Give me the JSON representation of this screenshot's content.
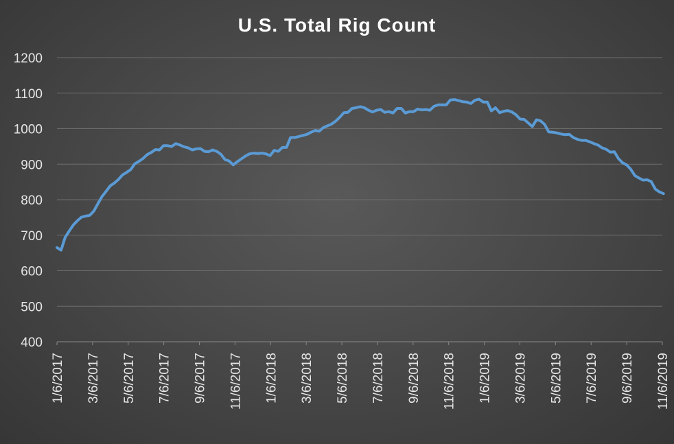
{
  "chart_data": {
    "type": "line",
    "title": "U.S. Total Rig Count",
    "xlabel": "",
    "ylabel": "",
    "ylim": [
      400,
      1200
    ],
    "yticks": [
      400,
      500,
      600,
      700,
      800,
      900,
      1000,
      1100,
      1200
    ],
    "xtick_labels": [
      "1/6/2017",
      "3/6/2017",
      "5/6/2017",
      "7/6/2017",
      "9/6/2017",
      "11/6/2017",
      "1/6/2018",
      "3/6/2018",
      "5/6/2018",
      "7/6/2018",
      "9/6/2018",
      "11/6/2018",
      "1/6/2019",
      "3/6/2019",
      "5/6/2019",
      "7/6/2019",
      "9/6/2019",
      "11/6/2019"
    ],
    "xlim": [
      "2017-01-06",
      "2019-11-06"
    ],
    "grid": true,
    "legend": "none",
    "series": [
      {
        "color": "#5b9bd5",
        "points": [
          [
            "2017-01-06",
            665
          ],
          [
            "2017-01-13",
            658
          ],
          [
            "2017-01-20",
            694
          ],
          [
            "2017-01-27",
            712
          ],
          [
            "2017-02-03",
            729
          ],
          [
            "2017-02-10",
            741
          ],
          [
            "2017-02-17",
            751
          ],
          [
            "2017-02-24",
            754
          ],
          [
            "2017-03-03",
            756
          ],
          [
            "2017-03-10",
            768
          ],
          [
            "2017-03-17",
            789
          ],
          [
            "2017-03-24",
            809
          ],
          [
            "2017-03-31",
            824
          ],
          [
            "2017-04-07",
            839
          ],
          [
            "2017-04-14",
            847
          ],
          [
            "2017-04-21",
            857
          ],
          [
            "2017-04-28",
            870
          ],
          [
            "2017-05-05",
            877
          ],
          [
            "2017-05-12",
            885
          ],
          [
            "2017-05-19",
            901
          ],
          [
            "2017-05-26",
            908
          ],
          [
            "2017-06-02",
            916
          ],
          [
            "2017-06-09",
            927
          ],
          [
            "2017-06-16",
            933
          ],
          [
            "2017-06-23",
            941
          ],
          [
            "2017-06-30",
            940
          ],
          [
            "2017-07-07",
            952
          ],
          [
            "2017-07-14",
            952
          ],
          [
            "2017-07-21",
            950
          ],
          [
            "2017-07-28",
            958
          ],
          [
            "2017-08-04",
            954
          ],
          [
            "2017-08-11",
            949
          ],
          [
            "2017-08-18",
            946
          ],
          [
            "2017-08-25",
            940
          ],
          [
            "2017-09-01",
            943
          ],
          [
            "2017-09-08",
            944
          ],
          [
            "2017-09-15",
            936
          ],
          [
            "2017-09-22",
            935
          ],
          [
            "2017-09-29",
            940
          ],
          [
            "2017-10-06",
            936
          ],
          [
            "2017-10-13",
            928
          ],
          [
            "2017-10-20",
            913
          ],
          [
            "2017-10-27",
            909
          ],
          [
            "2017-11-03",
            898
          ],
          [
            "2017-11-10",
            907
          ],
          [
            "2017-11-17",
            915
          ],
          [
            "2017-11-24",
            923
          ],
          [
            "2017-12-01",
            929
          ],
          [
            "2017-12-08",
            931
          ],
          [
            "2017-12-15",
            930
          ],
          [
            "2017-12-22",
            931
          ],
          [
            "2017-12-29",
            929
          ],
          [
            "2018-01-05",
            924
          ],
          [
            "2018-01-12",
            939
          ],
          [
            "2018-01-19",
            936
          ],
          [
            "2018-01-26",
            947
          ],
          [
            "2018-02-02",
            947
          ],
          [
            "2018-02-09",
            975
          ],
          [
            "2018-02-16",
            975
          ],
          [
            "2018-02-23",
            978
          ],
          [
            "2018-03-02",
            981
          ],
          [
            "2018-03-09",
            984
          ],
          [
            "2018-03-16",
            990
          ],
          [
            "2018-03-23",
            995
          ],
          [
            "2018-03-30",
            993
          ],
          [
            "2018-04-06",
            1003
          ],
          [
            "2018-04-13",
            1008
          ],
          [
            "2018-04-20",
            1013
          ],
          [
            "2018-04-27",
            1021
          ],
          [
            "2018-05-04",
            1032
          ],
          [
            "2018-05-11",
            1045
          ],
          [
            "2018-05-18",
            1046
          ],
          [
            "2018-05-25",
            1057
          ],
          [
            "2018-06-01",
            1059
          ],
          [
            "2018-06-08",
            1062
          ],
          [
            "2018-06-15",
            1059
          ],
          [
            "2018-06-22",
            1052
          ],
          [
            "2018-06-29",
            1047
          ],
          [
            "2018-07-06",
            1052
          ],
          [
            "2018-07-13",
            1054
          ],
          [
            "2018-07-20",
            1046
          ],
          [
            "2018-07-27",
            1048
          ],
          [
            "2018-08-03",
            1044
          ],
          [
            "2018-08-10",
            1057
          ],
          [
            "2018-08-17",
            1057
          ],
          [
            "2018-08-24",
            1044
          ],
          [
            "2018-08-31",
            1048
          ],
          [
            "2018-09-07",
            1048
          ],
          [
            "2018-09-14",
            1055
          ],
          [
            "2018-09-21",
            1053
          ],
          [
            "2018-09-28",
            1054
          ],
          [
            "2018-10-05",
            1052
          ],
          [
            "2018-10-12",
            1063
          ],
          [
            "2018-10-19",
            1067
          ],
          [
            "2018-10-26",
            1067
          ],
          [
            "2018-11-02",
            1067
          ],
          [
            "2018-11-09",
            1081
          ],
          [
            "2018-11-16",
            1082
          ],
          [
            "2018-11-23",
            1079
          ],
          [
            "2018-11-30",
            1076
          ],
          [
            "2018-12-07",
            1075
          ],
          [
            "2018-12-14",
            1071
          ],
          [
            "2018-12-21",
            1080
          ],
          [
            "2018-12-28",
            1083
          ],
          [
            "2019-01-04",
            1075
          ],
          [
            "2019-01-11",
            1075
          ],
          [
            "2019-01-18",
            1050
          ],
          [
            "2019-01-25",
            1059
          ],
          [
            "2019-02-01",
            1045
          ],
          [
            "2019-02-08",
            1049
          ],
          [
            "2019-02-15",
            1051
          ],
          [
            "2019-02-22",
            1047
          ],
          [
            "2019-03-01",
            1039
          ],
          [
            "2019-03-08",
            1027
          ],
          [
            "2019-03-15",
            1026
          ],
          [
            "2019-03-22",
            1016
          ],
          [
            "2019-03-29",
            1006
          ],
          [
            "2019-04-05",
            1025
          ],
          [
            "2019-04-12",
            1022
          ],
          [
            "2019-04-19",
            1012
          ],
          [
            "2019-04-26",
            991
          ],
          [
            "2019-05-03",
            990
          ],
          [
            "2019-05-10",
            988
          ],
          [
            "2019-05-17",
            985
          ],
          [
            "2019-05-24",
            983
          ],
          [
            "2019-05-31",
            984
          ],
          [
            "2019-06-07",
            975
          ],
          [
            "2019-06-14",
            970
          ],
          [
            "2019-06-21",
            967
          ],
          [
            "2019-06-28",
            967
          ],
          [
            "2019-07-05",
            963
          ],
          [
            "2019-07-12",
            958
          ],
          [
            "2019-07-19",
            954
          ],
          [
            "2019-07-26",
            946
          ],
          [
            "2019-08-02",
            942
          ],
          [
            "2019-08-09",
            934
          ],
          [
            "2019-08-16",
            935
          ],
          [
            "2019-08-23",
            916
          ],
          [
            "2019-08-30",
            904
          ],
          [
            "2019-09-06",
            898
          ],
          [
            "2019-09-13",
            886
          ],
          [
            "2019-09-20",
            868
          ],
          [
            "2019-09-27",
            861
          ],
          [
            "2019-10-04",
            855
          ],
          [
            "2019-10-11",
            856
          ],
          [
            "2019-10-18",
            851
          ],
          [
            "2019-10-25",
            830
          ],
          [
            "2019-11-01",
            822
          ],
          [
            "2019-11-08",
            817
          ]
        ]
      }
    ]
  }
}
